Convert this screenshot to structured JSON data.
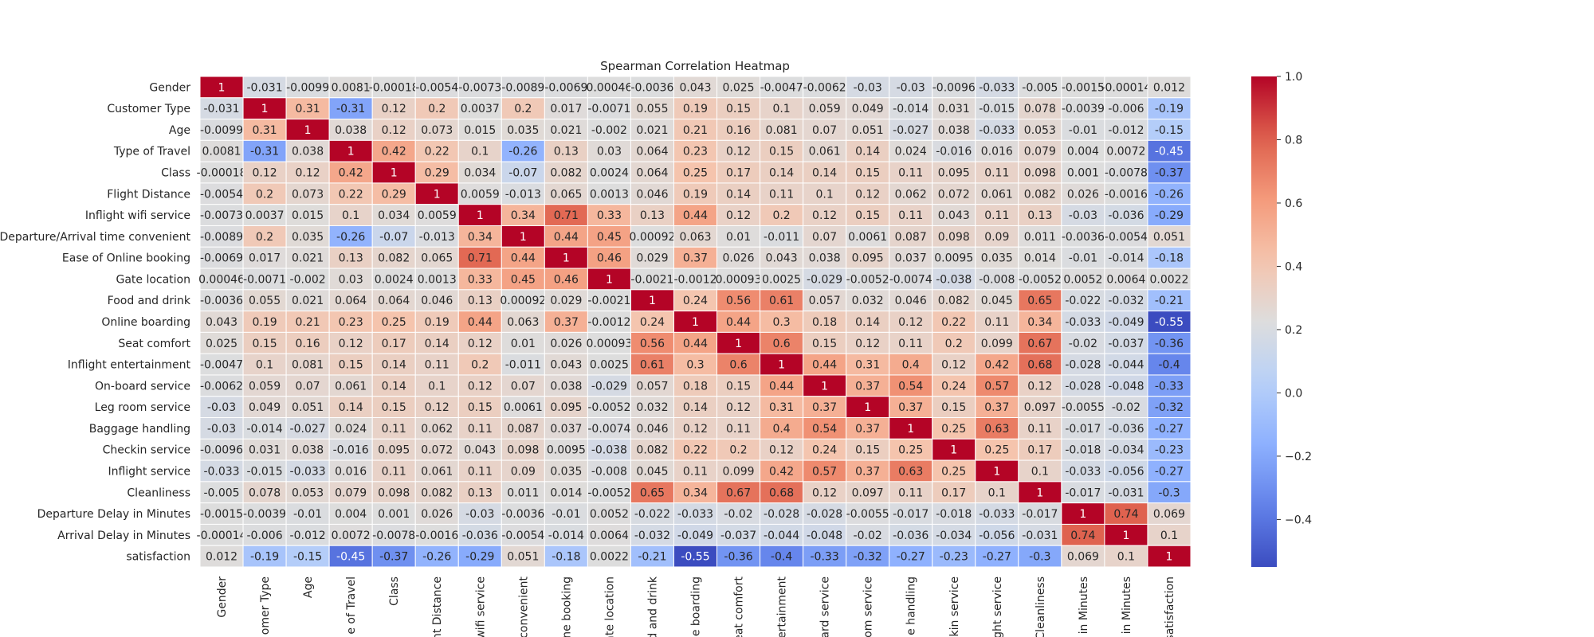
{
  "chart_data": {
    "type": "heatmap",
    "title": "Spearman Correlation Heatmap",
    "row_labels": [
      "Gender",
      "Customer Type",
      "Age",
      "Type of Travel",
      "Class",
      "Flight Distance",
      "Inflight wifi service",
      "Departure/Arrival time convenient",
      "Ease of Online booking",
      "Gate location",
      "Food and drink",
      "Online boarding",
      "Seat comfort",
      "Inflight entertainment",
      "On-board service",
      "Leg room service",
      "Baggage handling",
      "Checkin service",
      "Inflight service",
      "Cleanliness",
      "Departure Delay in Minutes",
      "Arrival Delay in Minutes",
      "satisfaction"
    ],
    "col_labels_visible": [
      "Gender",
      "omer Type",
      "Age",
      "e of Travel",
      "Class",
      "nt Distance",
      "wifi service",
      "convenient",
      "ne booking",
      "ate location",
      "d and drink",
      "e boarding",
      "eat comfort",
      "ertainment",
      "ard service",
      "om service",
      "e handling",
      "kin service",
      "ght service",
      "Cleanliness",
      "in Minutes",
      "in Minutes",
      "satisfaction"
    ],
    "values": [
      [
        "1",
        "-0.031",
        "-0.0099",
        "0.0081",
        "-0.00018",
        "-0.0054",
        "-0.0073",
        "-0.0089",
        "-0.0069",
        "0.00046",
        "-0.0036",
        "0.043",
        "0.025",
        "-0.0047",
        "-0.0062",
        "-0.03",
        "-0.03",
        "-0.0096",
        "-0.033",
        "-0.005",
        "-0.0015",
        "-0.00014",
        "0.012"
      ],
      [
        "-0.031",
        "1",
        "0.31",
        "-0.31",
        "0.12",
        "0.2",
        "0.0037",
        "0.2",
        "0.017",
        "-0.0071",
        "0.055",
        "0.19",
        "0.15",
        "0.1",
        "0.059",
        "0.049",
        "-0.014",
        "0.031",
        "-0.015",
        "0.078",
        "-0.0039",
        "-0.006",
        "-0.19"
      ],
      [
        "-0.0099",
        "0.31",
        "1",
        "0.038",
        "0.12",
        "0.073",
        "0.015",
        "0.035",
        "0.021",
        "-0.002",
        "0.021",
        "0.21",
        "0.16",
        "0.081",
        "0.07",
        "0.051",
        "-0.027",
        "0.038",
        "-0.033",
        "0.053",
        "-0.01",
        "-0.012",
        "-0.15"
      ],
      [
        "0.0081",
        "-0.31",
        "0.038",
        "1",
        "0.42",
        "0.22",
        "0.1",
        "-0.26",
        "0.13",
        "0.03",
        "0.064",
        "0.23",
        "0.12",
        "0.15",
        "0.061",
        "0.14",
        "0.024",
        "-0.016",
        "0.016",
        "0.079",
        "0.004",
        "0.0072",
        "-0.45"
      ],
      [
        "-0.00018",
        "0.12",
        "0.12",
        "0.42",
        "1",
        "0.29",
        "0.034",
        "-0.07",
        "0.082",
        "0.0024",
        "0.064",
        "0.25",
        "0.17",
        "0.14",
        "0.14",
        "0.15",
        "0.11",
        "0.095",
        "0.11",
        "0.098",
        "0.001",
        "-0.0078",
        "-0.37"
      ],
      [
        "-0.0054",
        "0.2",
        "0.073",
        "0.22",
        "0.29",
        "1",
        "0.0059",
        "-0.013",
        "0.065",
        "0.0013",
        "0.046",
        "0.19",
        "0.14",
        "0.11",
        "0.1",
        "0.12",
        "0.062",
        "0.072",
        "0.061",
        "0.082",
        "0.026",
        "-0.0016",
        "-0.26"
      ],
      [
        "-0.0073",
        "0.0037",
        "0.015",
        "0.1",
        "0.034",
        "0.0059",
        "1",
        "0.34",
        "0.71",
        "0.33",
        "0.13",
        "0.44",
        "0.12",
        "0.2",
        "0.12",
        "0.15",
        "0.11",
        "0.043",
        "0.11",
        "0.13",
        "-0.03",
        "-0.036",
        "-0.29"
      ],
      [
        "-0.0089",
        "0.2",
        "0.035",
        "-0.26",
        "-0.07",
        "-0.013",
        "0.34",
        "1",
        "0.44",
        "0.45",
        "0.00092",
        "0.063",
        "0.01",
        "-0.011",
        "0.07",
        "0.0061",
        "0.087",
        "0.098",
        "0.09",
        "0.011",
        "-0.0036",
        "-0.0054",
        "0.051"
      ],
      [
        "-0.0069",
        "0.017",
        "0.021",
        "0.13",
        "0.082",
        "0.065",
        "0.71",
        "0.44",
        "1",
        "0.46",
        "0.029",
        "0.37",
        "0.026",
        "0.043",
        "0.038",
        "0.095",
        "0.037",
        "0.0095",
        "0.035",
        "0.014",
        "-0.01",
        "-0.014",
        "-0.18"
      ],
      [
        "0.00046",
        "-0.0071",
        "-0.002",
        "0.03",
        "0.0024",
        "0.0013",
        "0.33",
        "0.45",
        "0.46",
        "1",
        "-0.0021",
        "-0.0012",
        "0.00093",
        "0.0025",
        "-0.029",
        "-0.0052",
        "-0.0074",
        "-0.038",
        "-0.008",
        "-0.0052",
        "0.0052",
        "0.0064",
        "0.0022"
      ],
      [
        "-0.0036",
        "0.055",
        "0.021",
        "0.064",
        "0.064",
        "0.046",
        "0.13",
        "0.00092",
        "0.029",
        "-0.0021",
        "1",
        "0.24",
        "0.56",
        "0.61",
        "0.057",
        "0.032",
        "0.046",
        "0.082",
        "0.045",
        "0.65",
        "-0.022",
        "-0.032",
        "-0.21"
      ],
      [
        "0.043",
        "0.19",
        "0.21",
        "0.23",
        "0.25",
        "0.19",
        "0.44",
        "0.063",
        "0.37",
        "-0.0012",
        "0.24",
        "1",
        "0.44",
        "0.3",
        "0.18",
        "0.14",
        "0.12",
        "0.22",
        "0.11",
        "0.34",
        "-0.033",
        "-0.049",
        "-0.55"
      ],
      [
        "0.025",
        "0.15",
        "0.16",
        "0.12",
        "0.17",
        "0.14",
        "0.12",
        "0.01",
        "0.026",
        "0.00093",
        "0.56",
        "0.44",
        "1",
        "0.6",
        "0.15",
        "0.12",
        "0.11",
        "0.2",
        "0.099",
        "0.67",
        "-0.02",
        "-0.037",
        "-0.36"
      ],
      [
        "-0.0047",
        "0.1",
        "0.081",
        "0.15",
        "0.14",
        "0.11",
        "0.2",
        "-0.011",
        "0.043",
        "0.0025",
        "0.61",
        "0.3",
        "0.6",
        "1",
        "0.44",
        "0.31",
        "0.4",
        "0.12",
        "0.42",
        "0.68",
        "-0.028",
        "-0.044",
        "-0.4"
      ],
      [
        "-0.0062",
        "0.059",
        "0.07",
        "0.061",
        "0.14",
        "0.1",
        "0.12",
        "0.07",
        "0.038",
        "-0.029",
        "0.057",
        "0.18",
        "0.15",
        "0.44",
        "1",
        "0.37",
        "0.54",
        "0.24",
        "0.57",
        "0.12",
        "-0.028",
        "-0.048",
        "-0.33"
      ],
      [
        "-0.03",
        "0.049",
        "0.051",
        "0.14",
        "0.15",
        "0.12",
        "0.15",
        "0.0061",
        "0.095",
        "-0.0052",
        "0.032",
        "0.14",
        "0.12",
        "0.31",
        "0.37",
        "1",
        "0.37",
        "0.15",
        "0.37",
        "0.097",
        "-0.0055",
        "-0.02",
        "-0.32"
      ],
      [
        "-0.03",
        "-0.014",
        "-0.027",
        "0.024",
        "0.11",
        "0.062",
        "0.11",
        "0.087",
        "0.037",
        "-0.0074",
        "0.046",
        "0.12",
        "0.11",
        "0.4",
        "0.54",
        "0.37",
        "1",
        "0.25",
        "0.63",
        "0.11",
        "-0.017",
        "-0.036",
        "-0.27"
      ],
      [
        "-0.0096",
        "0.031",
        "0.038",
        "-0.016",
        "0.095",
        "0.072",
        "0.043",
        "0.098",
        "0.0095",
        "-0.038",
        "0.082",
        "0.22",
        "0.2",
        "0.12",
        "0.24",
        "0.15",
        "0.25",
        "1",
        "0.25",
        "0.17",
        "-0.018",
        "-0.034",
        "-0.23"
      ],
      [
        "-0.033",
        "-0.015",
        "-0.033",
        "0.016",
        "0.11",
        "0.061",
        "0.11",
        "0.09",
        "0.035",
        "-0.008",
        "0.045",
        "0.11",
        "0.099",
        "0.42",
        "0.57",
        "0.37",
        "0.63",
        "0.25",
        "1",
        "0.1",
        "-0.033",
        "-0.056",
        "-0.27"
      ],
      [
        "-0.005",
        "0.078",
        "0.053",
        "0.079",
        "0.098",
        "0.082",
        "0.13",
        "0.011",
        "0.014",
        "-0.0052",
        "0.65",
        "0.34",
        "0.67",
        "0.68",
        "0.12",
        "0.097",
        "0.11",
        "0.17",
        "0.1",
        "1",
        "-0.017",
        "-0.031",
        "-0.3"
      ],
      [
        "-0.0015",
        "-0.0039",
        "-0.01",
        "0.004",
        "0.001",
        "0.026",
        "-0.03",
        "-0.0036",
        "-0.01",
        "0.0052",
        "-0.022",
        "-0.033",
        "-0.02",
        "-0.028",
        "-0.028",
        "-0.0055",
        "-0.017",
        "-0.018",
        "-0.033",
        "-0.017",
        "1",
        "0.74",
        "0.069"
      ],
      [
        "-0.00014",
        "-0.006",
        "-0.012",
        "0.0072",
        "-0.0078",
        "-0.0016",
        "-0.036",
        "-0.0054",
        "-0.014",
        "0.0064",
        "-0.032",
        "-0.049",
        "-0.037",
        "-0.044",
        "-0.048",
        "-0.02",
        "-0.036",
        "-0.034",
        "-0.056",
        "-0.031",
        "0.74",
        "1",
        "0.1"
      ],
      [
        "0.012",
        "-0.19",
        "-0.15",
        "-0.45",
        "-0.37",
        "-0.26",
        "-0.29",
        "0.051",
        "-0.18",
        "0.0022",
        "-0.21",
        "-0.55",
        "-0.36",
        "-0.4",
        "-0.33",
        "-0.32",
        "-0.27",
        "-0.23",
        "-0.27",
        "-0.3",
        "0.069",
        "0.1",
        "1"
      ]
    ],
    "colorbar": {
      "min": -0.55,
      "max": 1.0,
      "ticks": [
        1.0,
        0.8,
        0.6,
        0.4,
        0.2,
        0.0,
        -0.2,
        -0.4
      ],
      "tick_labels": [
        "1.0",
        "0.8",
        "0.6",
        "0.4",
        "0.2",
        "0.0",
        "−0.2",
        "−0.4"
      ],
      "colormap": "coolwarm"
    },
    "colors": {
      "low": "#3b4cc0",
      "mid": "#dddddd",
      "high": "#b40426",
      "grid": "#ffffff",
      "text_dark": "#262626",
      "text_light": "#ffffff"
    }
  }
}
